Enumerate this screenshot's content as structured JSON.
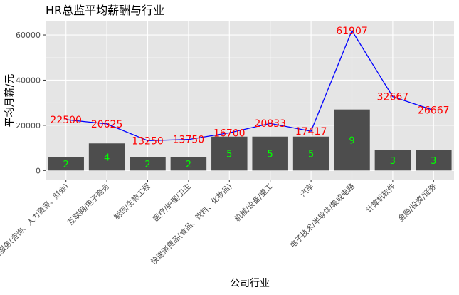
{
  "chart_data": {
    "type": "bar",
    "title": "HR总监平均薪酬与行业",
    "xlabel": "公司行业",
    "ylabel": "平均月薪/元",
    "categories": [
      "专业服务(咨询、人力资源、财会)",
      "互联网/电子商务",
      "制药/生物工程",
      "医疗/护理/卫生",
      "快速消费品(食品、饮料、化妆品)",
      "机械/设备/重工",
      "汽车",
      "电子技术/半导体/集成电路",
      "计算机软件",
      "金融/投资/证券"
    ],
    "series": [
      {
        "type": "bar",
        "values": [
          2,
          4,
          2,
          2,
          5,
          5,
          5,
          9,
          3,
          3
        ]
      },
      {
        "type": "line",
        "values": [
          22500,
          20625,
          13250,
          13750,
          16700,
          20833,
          17417,
          61907,
          32667,
          26667
        ]
      }
    ],
    "y_ticks": [
      "0",
      "20000",
      "40000",
      "60000"
    ],
    "ylim": [
      -4000,
      66000
    ],
    "bar_scale": 3000,
    "grid": true,
    "colors": {
      "panel": "#e5e5e5",
      "grid_major": "#ffffff",
      "bar": "#4d4d4d",
      "line": "#0000ff",
      "avg_label": "#ff0000",
      "count_label": "#00ff00"
    }
  }
}
